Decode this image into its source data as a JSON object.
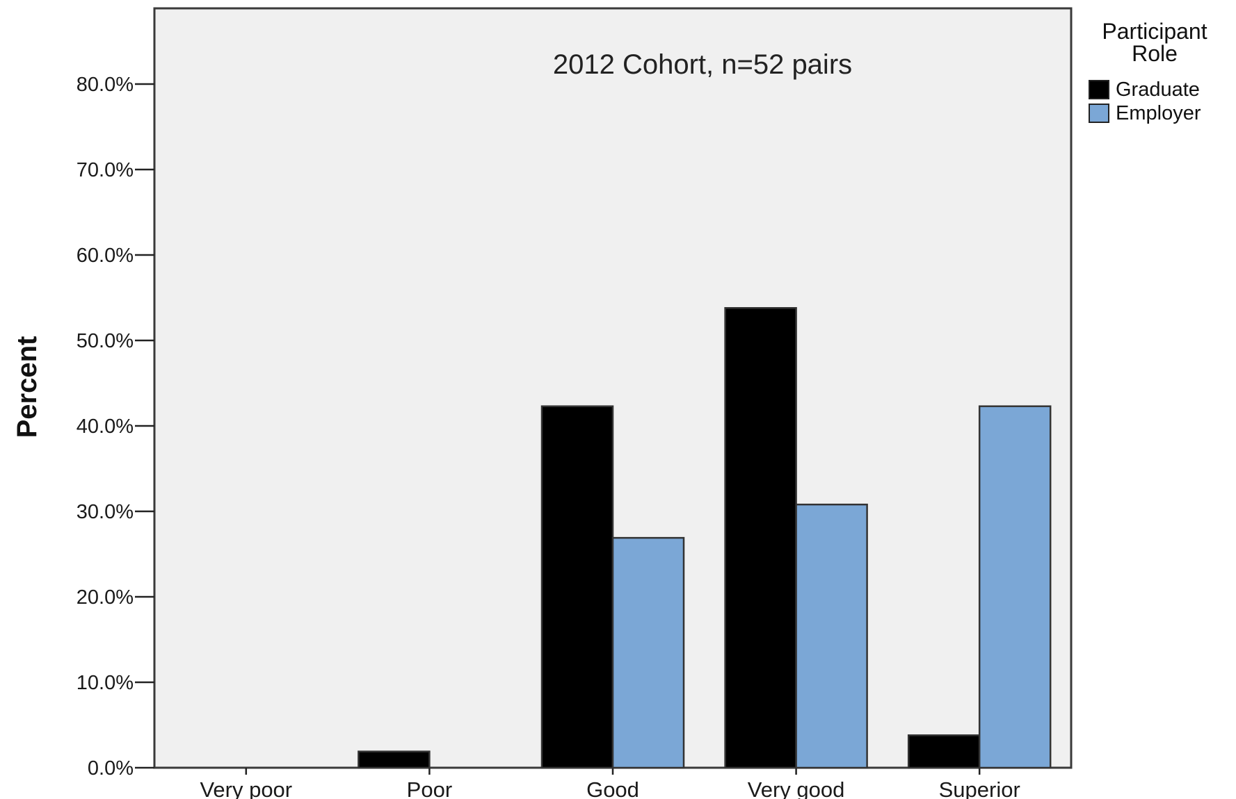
{
  "chart_data": {
    "type": "bar",
    "title": "",
    "annotation": "2012 Cohort, n=52 pairs",
    "xlabel": "",
    "ylabel": "Percent",
    "categories": [
      "Very poor",
      "Poor",
      "Good",
      "Very good",
      "Superior"
    ],
    "series": [
      {
        "name": "Graduate",
        "values": [
          0.0,
          1.9,
          42.3,
          53.8,
          3.8
        ],
        "color": "#000000"
      },
      {
        "name": "Employer",
        "values": [
          0.0,
          0.0,
          26.9,
          30.8,
          42.3
        ],
        "color": "#7ba7d6"
      }
    ],
    "ylim": [
      0,
      88
    ],
    "yticks": [
      0,
      10,
      20,
      30,
      40,
      50,
      60,
      70,
      80
    ],
    "ytick_labels": [
      "0.0%",
      "10.0%",
      "20.0%",
      "30.0%",
      "40.0%",
      "50.0%",
      "60.0%",
      "70.0%",
      "80.0%"
    ],
    "legend": {
      "title_lines": [
        "Participant",
        "Role"
      ],
      "placement": "right"
    },
    "plot_background": "#f0f0f0",
    "grid": false
  }
}
